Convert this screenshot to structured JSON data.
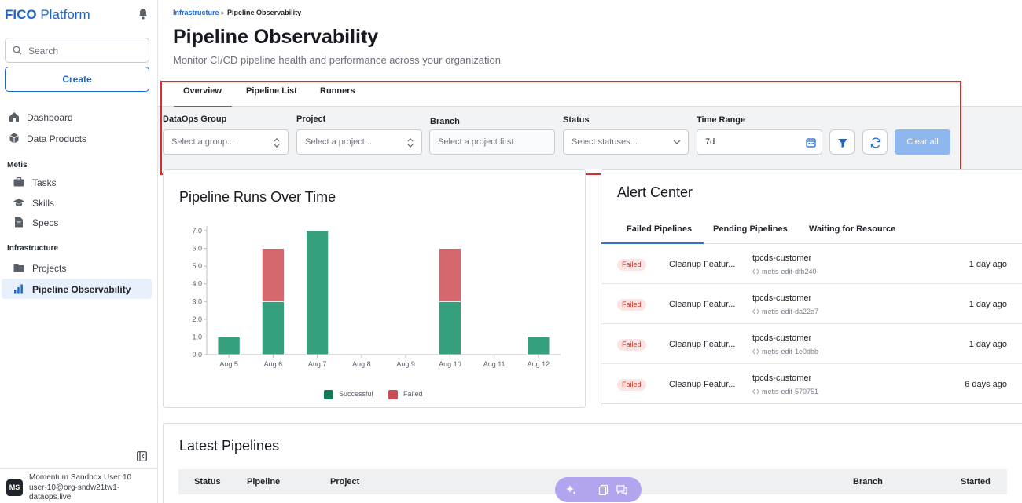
{
  "brand": {
    "bold": "FICO",
    "rest": " Platform"
  },
  "sidebar": {
    "search_placeholder": "Search",
    "create_label": "Create",
    "items_top": [
      {
        "label": "Dashboard",
        "icon": "home-icon"
      },
      {
        "label": "Data Products",
        "icon": "cube-icon"
      }
    ],
    "section_metis": "Metis",
    "items_metis": [
      {
        "label": "Tasks",
        "icon": "briefcase-icon"
      },
      {
        "label": "Skills",
        "icon": "graduation-cap-icon"
      },
      {
        "label": "Specs",
        "icon": "document-icon"
      }
    ],
    "section_infra": "Infrastructure",
    "items_infra": [
      {
        "label": "Projects",
        "icon": "folder-icon"
      },
      {
        "label": "Pipeline Observability",
        "icon": "bar-chart-icon",
        "active": true
      }
    ],
    "user": {
      "initials": "MS",
      "name": "Momentum Sandbox User 10",
      "email_line1": "user-10@org-sndw21tw1-",
      "email_line2": "dataops.live"
    }
  },
  "breadcrumb": {
    "parent": "Infrastructure",
    "current": "Pipeline Observability"
  },
  "page": {
    "title": "Pipeline Observability",
    "subtitle": "Monitor CI/CD pipeline health and performance across your organization"
  },
  "tabs": [
    {
      "label": "Overview",
      "active": true
    },
    {
      "label": "Pipeline List",
      "active": false
    },
    {
      "label": "Runners",
      "active": false
    }
  ],
  "filters": {
    "group": {
      "label": "DataOps Group",
      "placeholder": "Select a group..."
    },
    "project": {
      "label": "Project",
      "placeholder": "Select a project..."
    },
    "branch": {
      "label": "Branch",
      "placeholder": "Select a project first"
    },
    "status": {
      "label": "Status",
      "placeholder": "Select statuses..."
    },
    "time_range": {
      "label": "Time Range",
      "value": "7d"
    },
    "clear_label": "Clear all"
  },
  "chart_data": {
    "type": "bar",
    "stacked": true,
    "title": "Pipeline Runs Over Time",
    "categories": [
      "Aug 5",
      "Aug 6",
      "Aug 7",
      "Aug 8",
      "Aug 9",
      "Aug 10",
      "Aug 11",
      "Aug 12"
    ],
    "series": [
      {
        "name": "Successful",
        "color": "#34a07e",
        "values": [
          1,
          3,
          7,
          0,
          0,
          3,
          0,
          1
        ]
      },
      {
        "name": "Failed",
        "color": "#d4686e",
        "values": [
          0,
          3,
          0,
          0,
          0,
          3,
          0,
          0
        ]
      }
    ],
    "ylim": [
      0,
      7
    ],
    "yticks": [
      "0.0",
      "1.0",
      "2.0",
      "3.0",
      "4.0",
      "5.0",
      "6.0",
      "7.0"
    ],
    "legend": "bottom",
    "legend_colors": {
      "Successful": "#167a5a",
      "Failed": "#c94d55"
    }
  },
  "alerts": {
    "title": "Alert Center",
    "tabs": [
      "Failed Pipelines",
      "Pending Pipelines",
      "Waiting for Resource"
    ],
    "rows": [
      {
        "status": "Failed",
        "name": "Cleanup Featur...",
        "repo": "tpcds-customer",
        "branch": "metis-edit-dfb240",
        "time": "1 day ago"
      },
      {
        "status": "Failed",
        "name": "Cleanup Featur...",
        "repo": "tpcds-customer",
        "branch": "metis-edit-da22e7",
        "time": "1 day ago"
      },
      {
        "status": "Failed",
        "name": "Cleanup Featur...",
        "repo": "tpcds-customer",
        "branch": "metis-edit-1e0dbb",
        "time": "1 day ago"
      },
      {
        "status": "Failed",
        "name": "Cleanup Featur...",
        "repo": "tpcds-customer",
        "branch": "metis-edit-570751",
        "time": "6 days ago"
      }
    ]
  },
  "latest": {
    "title": "Latest Pipelines",
    "columns": [
      "Status",
      "Pipeline",
      "Project",
      "Branch",
      "Started"
    ]
  }
}
